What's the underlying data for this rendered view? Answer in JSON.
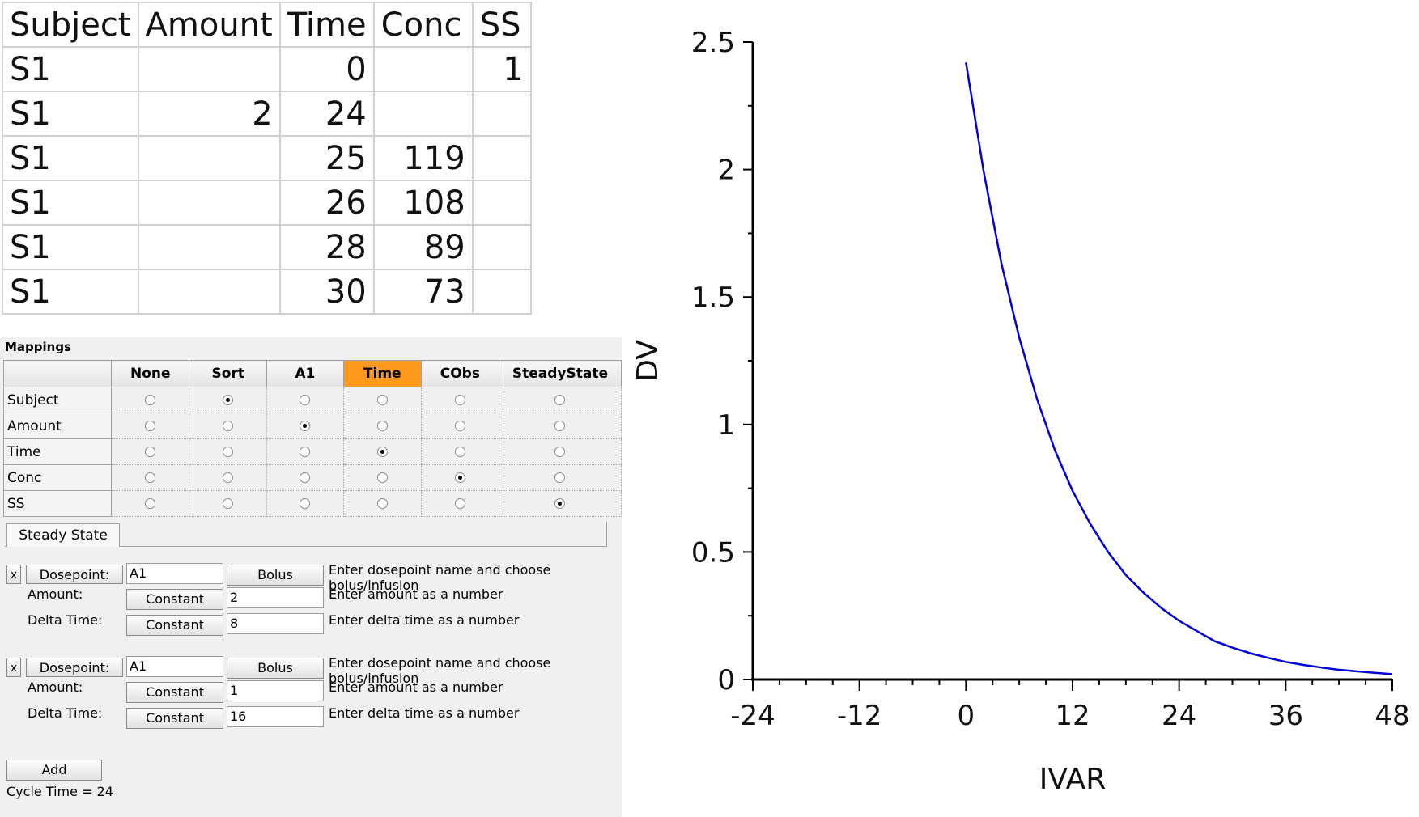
{
  "table": {
    "headers": [
      "Subject",
      "Amount",
      "Time",
      "Conc",
      "SS"
    ],
    "rows": [
      [
        "S1",
        "",
        "0",
        "",
        "1"
      ],
      [
        "S1",
        "2",
        "24",
        "",
        ""
      ],
      [
        "S1",
        "",
        "25",
        "119",
        ""
      ],
      [
        "S1",
        "",
        "26",
        "108",
        ""
      ],
      [
        "S1",
        "",
        "28",
        "89",
        ""
      ],
      [
        "S1",
        "",
        "30",
        "73",
        ""
      ]
    ]
  },
  "mappings": {
    "title": "Mappings",
    "columns": [
      "None",
      "Sort",
      "A1",
      "Time",
      "CObs",
      "SteadyState"
    ],
    "active_column": "Time",
    "active_color": "#ff9a1e",
    "rows": [
      {
        "name": "Subject",
        "selected": "Sort"
      },
      {
        "name": "Amount",
        "selected": "A1"
      },
      {
        "name": "Time",
        "selected": "Time"
      },
      {
        "name": "Conc",
        "selected": "CObs"
      },
      {
        "name": "SS",
        "selected": "SteadyState"
      }
    ]
  },
  "steady_state": {
    "tab_label": "Steady State",
    "doses": [
      {
        "remove_label": "x",
        "dosepoint_label": "Dosepoint:",
        "dosepoint_value": "A1",
        "type_label": "Bolus",
        "dosepoint_hint": "Enter dosepoint name and choose bolus/infusion",
        "amount_label": "Amount:",
        "amount_mode": "Constant",
        "amount_value": "2",
        "amount_hint": "Enter amount as a number",
        "delta_label": "Delta Time:",
        "delta_mode": "Constant",
        "delta_value": "8",
        "delta_hint": "Enter delta time as a number"
      },
      {
        "remove_label": "x",
        "dosepoint_label": "Dosepoint:",
        "dosepoint_value": "A1",
        "type_label": "Bolus",
        "dosepoint_hint": "Enter dosepoint name and choose bolus/infusion",
        "amount_label": "Amount:",
        "amount_mode": "Constant",
        "amount_value": "1",
        "amount_hint": "Enter amount as a number",
        "delta_label": "Delta Time:",
        "delta_mode": "Constant",
        "delta_value": "16",
        "delta_hint": "Enter delta time as a number"
      }
    ],
    "add_label": "Add",
    "cycle_time": "Cycle Time = 24"
  },
  "chart_data": {
    "type": "line",
    "title": "",
    "xlabel": "IVAR",
    "ylabel": "DV",
    "xlim": [
      -24,
      48
    ],
    "ylim": [
      0,
      2.5
    ],
    "xticks": [
      "-24",
      "-12",
      "0",
      "12",
      "24",
      "36",
      "48"
    ],
    "yticks": [
      "0",
      "0.5",
      "1",
      "1.5",
      "2",
      "2.5"
    ],
    "grid": false,
    "series": [
      {
        "color": "#0000dd",
        "x": [
          0,
          2,
          4,
          6,
          8,
          10,
          12,
          14,
          16,
          18,
          20,
          22,
          24,
          26,
          28,
          30,
          32,
          34,
          36,
          38,
          40,
          42,
          44,
          46,
          48
        ],
        "y": [
          2.42,
          1.99,
          1.63,
          1.34,
          1.1,
          0.9,
          0.74,
          0.61,
          0.5,
          0.41,
          0.34,
          0.28,
          0.23,
          0.19,
          0.15,
          0.125,
          0.103,
          0.085,
          0.069,
          0.057,
          0.047,
          0.038,
          0.032,
          0.026,
          0.021
        ]
      }
    ]
  }
}
